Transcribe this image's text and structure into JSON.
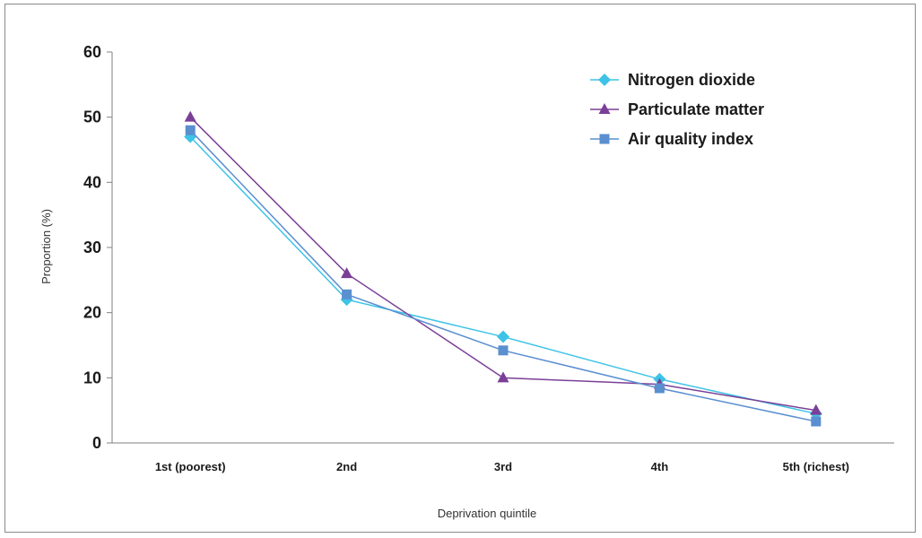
{
  "chart_data": {
    "type": "line",
    "categories": [
      "1st (poorest)",
      "2nd",
      "3rd",
      "4th",
      "5th (richest)"
    ],
    "series": [
      {
        "name": "Nitrogen dioxide",
        "values": [
          47,
          22,
          16.3,
          9.8,
          4.5
        ],
        "color": "#3ec3e6",
        "marker": "diamond"
      },
      {
        "name": "Particulate matter",
        "values": [
          50,
          26,
          10,
          9,
          5
        ],
        "color": "#7b3f97",
        "marker": "triangle"
      },
      {
        "name": "Air quality index",
        "values": [
          48,
          22.8,
          14.2,
          8.4,
          3.3
        ],
        "color": "#5a8fd0",
        "marker": "square"
      }
    ],
    "xlabel": "Deprivation quintile",
    "ylabel": "Proportion (%)",
    "ylim": [
      0,
      60
    ],
    "yticks": [
      0,
      10,
      20,
      30,
      40,
      50,
      60
    ],
    "grid": false,
    "legend_position": "top-right"
  }
}
